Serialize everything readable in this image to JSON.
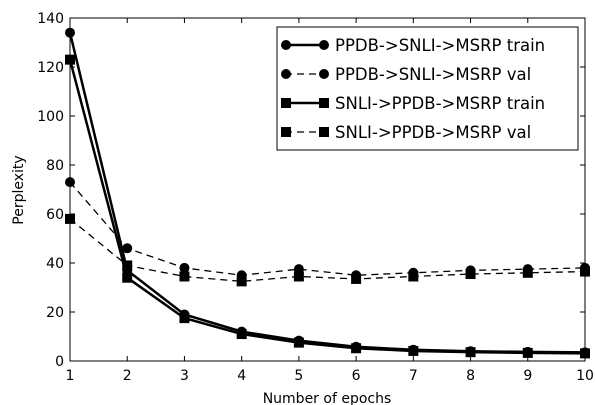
{
  "chart_data": {
    "type": "line",
    "xlabel": "Number of epochs",
    "ylabel": "Perplexity",
    "xlim": [
      1,
      10
    ],
    "ylim": [
      0,
      140
    ],
    "x_ticks": [
      1,
      2,
      3,
      4,
      5,
      6,
      7,
      8,
      9,
      10
    ],
    "y_ticks": [
      0,
      20,
      40,
      60,
      80,
      100,
      120,
      140
    ],
    "grid": false,
    "legend_position": "top-right",
    "x": [
      1,
      2,
      3,
      4,
      5,
      6,
      7,
      8,
      9,
      10
    ],
    "series": [
      {
        "name": "PPDB->SNLI->MSRP train",
        "marker": "circle",
        "line_style": "solid",
        "color": "#000000",
        "values": [
          134,
          37,
          19,
          12,
          8.3,
          5.8,
          4.6,
          4.0,
          3.7,
          3.5
        ]
      },
      {
        "name": "PPDB->SNLI->MSRP val",
        "marker": "circle",
        "line_style": "dashed",
        "color": "#000000",
        "values": [
          73,
          46,
          38,
          35,
          37.5,
          35,
          36,
          37,
          37.5,
          38
        ]
      },
      {
        "name": "SNLI->PPDB->MSRP train",
        "marker": "square",
        "line_style": "solid",
        "color": "#000000",
        "values": [
          123,
          34,
          17.5,
          11,
          7.5,
          5.2,
          4.1,
          3.6,
          3.3,
          3.1
        ]
      },
      {
        "name": "SNLI->PPDB->MSRP val",
        "marker": "square",
        "line_style": "dashed",
        "color": "#000000",
        "values": [
          58,
          39,
          34.5,
          32.5,
          34.5,
          33.5,
          34.5,
          35.5,
          36,
          36.5
        ]
      }
    ]
  }
}
